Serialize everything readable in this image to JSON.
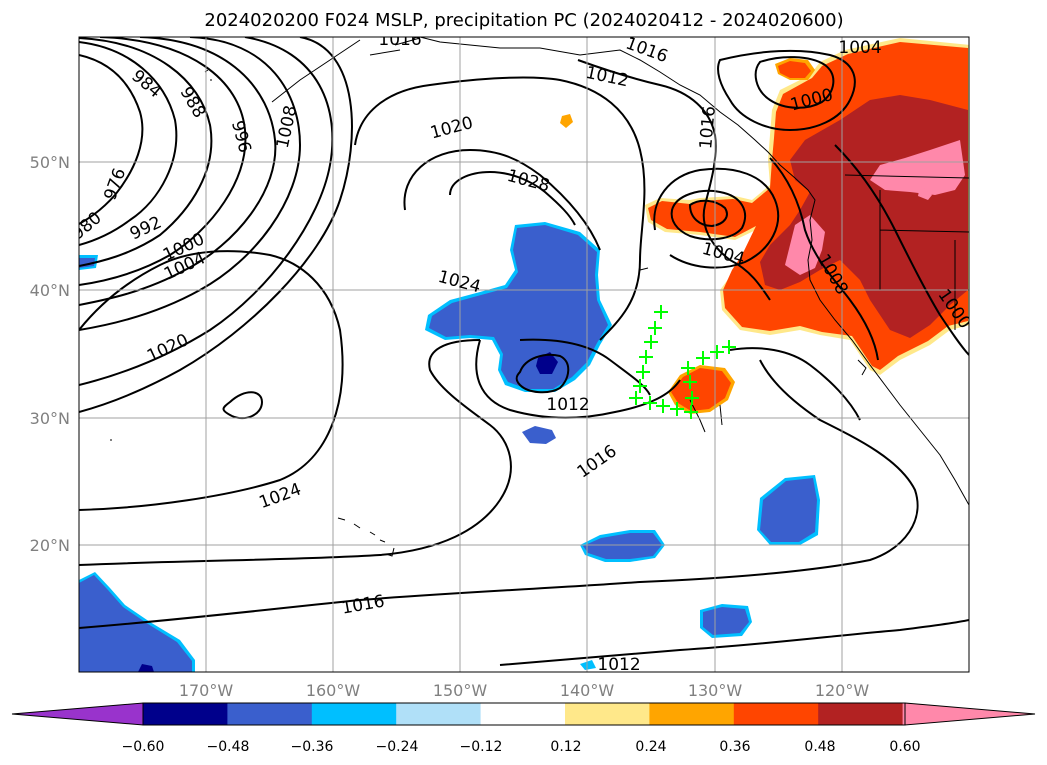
{
  "title": "2024020200 F024 MSLP, precipitation PC (2024020412 - 2024020600)",
  "lon_ticks": [
    "170°W",
    "160°W",
    "150°W",
    "140°W",
    "130°W",
    "120°W"
  ],
  "lat_ticks": [
    "50°N",
    "40°N",
    "30°N",
    "20°N"
  ],
  "isobar_labels": [
    {
      "text": "984",
      "angle": 40
    },
    {
      "text": "988",
      "angle": 60
    },
    {
      "text": "996",
      "angle": 75
    },
    {
      "text": "1008",
      "angle": 78
    },
    {
      "text": "976",
      "angle": -70
    },
    {
      "text": "980",
      "angle": -40
    },
    {
      "text": "992",
      "angle": -25
    },
    {
      "text": "1000",
      "angle": -25
    },
    {
      "text": "1004",
      "angle": -25
    },
    {
      "text": "1020",
      "angle": -25
    },
    {
      "text": "1016",
      "angle": 0
    },
    {
      "text": "1012",
      "angle": 12
    },
    {
      "text": "1016",
      "angle": 20
    },
    {
      "text": "1020",
      "angle": -15
    },
    {
      "text": "1028",
      "angle": 15
    },
    {
      "text": "1024",
      "angle": 15
    },
    {
      "text": "1012",
      "angle": 0
    },
    {
      "text": "1016",
      "angle": -35
    },
    {
      "text": "1024",
      "angle": -20
    },
    {
      "text": "1016",
      "angle": -10
    },
    {
      "text": "1012",
      "angle": 0
    },
    {
      "text": "1004",
      "angle": 0
    },
    {
      "text": "1000",
      "angle": -15
    },
    {
      "text": "1004",
      "angle": 15
    },
    {
      "text": "1008",
      "angle": 60
    },
    {
      "text": "1000",
      "angle": 55
    },
    {
      "text": "1016",
      "angle": -85
    }
  ],
  "colorbar": {
    "tick_labels": [
      "−0.60",
      "−0.48",
      "−0.36",
      "−0.24",
      "−0.12",
      "0.12",
      "0.24",
      "0.36",
      "0.48",
      "0.60"
    ],
    "colors": [
      "#9933cc",
      "#00008b",
      "#3a5fcd",
      "#00bfff",
      "#b0e0f8",
      "#ffffff",
      "#ffe88a",
      "#ffa500",
      "#ff4500",
      "#b22222",
      "#ff88aa",
      "#ff88aa"
    ]
  },
  "colors": {
    "neg_mid": "#3a5fcd",
    "neg_strong": "#00008b",
    "neg_edge": "#00bfff",
    "pos_low": "#ffa500",
    "pos_mid": "#ff4500",
    "pos_high": "#b22222",
    "pos_max": "#ff88aa",
    "markers": "#00ff00"
  }
}
